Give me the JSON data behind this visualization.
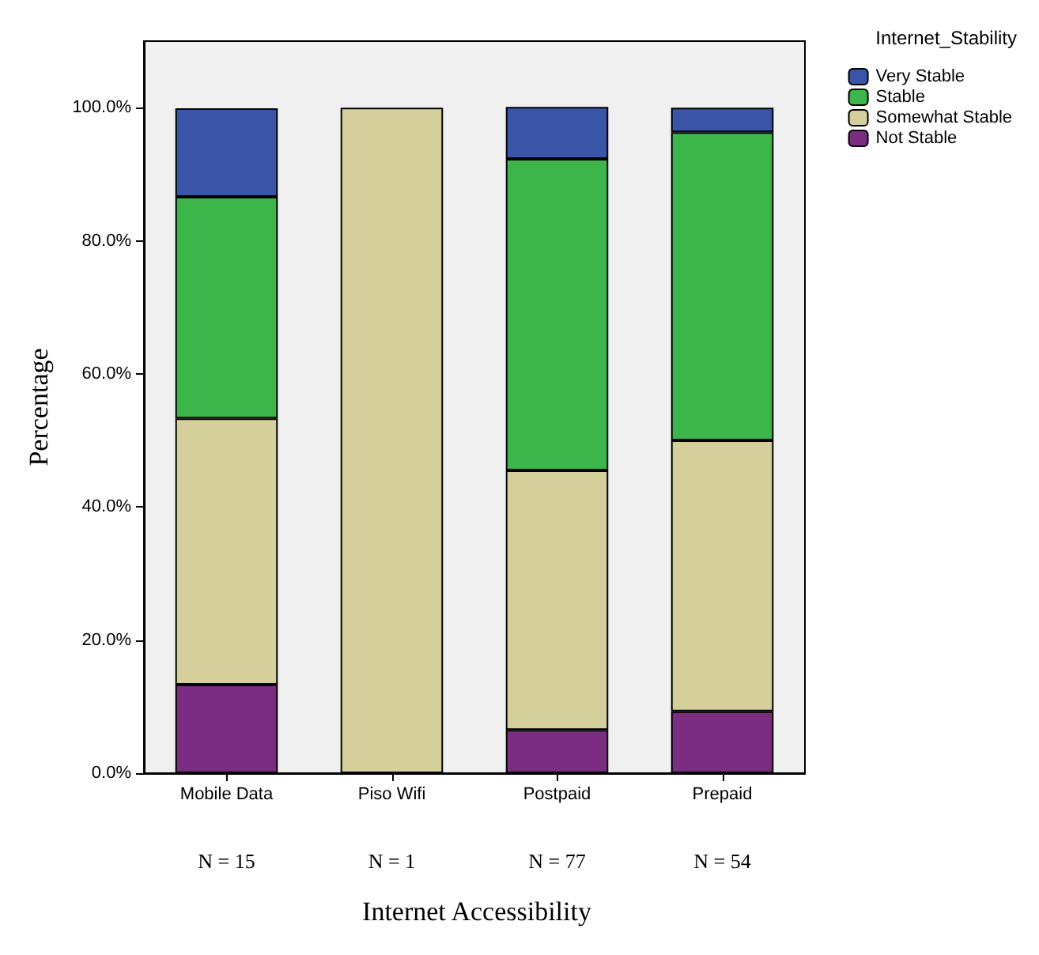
{
  "chart_data": {
    "type": "bar",
    "stacked": true,
    "xlabel": "Internet Accessibility",
    "ylabel": "Percentage",
    "legend_title": "Internet_Stability",
    "legend": "top right",
    "grid": false,
    "categories": [
      "Mobile Data",
      "Piso Wifi",
      "Postpaid",
      "Prepaid"
    ],
    "series": [
      {
        "name": "Not Stable",
        "color": "#7b2d82",
        "values": [
          13.3,
          0,
          6.5,
          9.3
        ]
      },
      {
        "name": "Somewhat Stable",
        "color": "#d4cf9b",
        "values": [
          40.0,
          100,
          39.0,
          40.7
        ]
      },
      {
        "name": "Stable",
        "color": "#3cb54a",
        "values": [
          33.3,
          0,
          46.8,
          46.3
        ]
      },
      {
        "name": "Very Stable",
        "color": "#3a55a8",
        "values": [
          13.3,
          0,
          7.8,
          3.7
        ]
      }
    ],
    "ylim": [
      0,
      110
    ],
    "yticks": [
      {
        "value": 0,
        "label": "0.0%"
      },
      {
        "value": 20,
        "label": "20.0%"
      },
      {
        "value": 40,
        "label": "40.0%"
      },
      {
        "value": 60,
        "label": "60.0%"
      },
      {
        "value": 80,
        "label": "80.0%"
      },
      {
        "value": 100,
        "label": "100.0%"
      }
    ],
    "annotations": [
      "N = 15",
      "N = 1",
      "N = 77",
      "N = 54"
    ]
  }
}
